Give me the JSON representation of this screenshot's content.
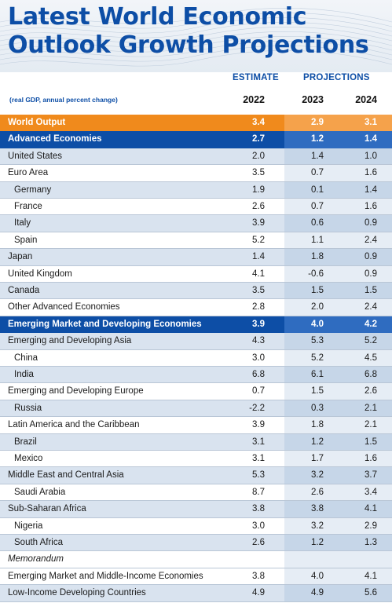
{
  "title_line1": "Latest World Economic",
  "title_line2": "Outlook Growth Projections",
  "header": {
    "estimate": "ESTIMATE",
    "projections": "PROJECTIONS",
    "note": "(real GDP, annual percent change)",
    "years": [
      "2022",
      "2023",
      "2024"
    ]
  },
  "colors": {
    "title": "#0d4ea6",
    "world_output": "#f08a1c",
    "group_header": "#0d4ea6",
    "alt_row": "#d9e3ef"
  },
  "chart_data": {
    "type": "table",
    "columns": [
      "2022",
      "2023",
      "2024"
    ],
    "rows": [
      {
        "label": "World Output",
        "values": [
          "3.4",
          "2.9",
          "3.1"
        ],
        "style": "orange",
        "indent": false
      },
      {
        "label": "Advanced Economies",
        "values": [
          "2.7",
          "1.2",
          "1.4"
        ],
        "style": "blue",
        "indent": false
      },
      {
        "label": "United States",
        "values": [
          "2.0",
          "1.4",
          "1.0"
        ],
        "style": "alt",
        "indent": false
      },
      {
        "label": "Euro Area",
        "values": [
          "3.5",
          "0.7",
          "1.6"
        ],
        "style": "plain",
        "indent": false
      },
      {
        "label": "Germany",
        "values": [
          "1.9",
          "0.1",
          "1.4"
        ],
        "style": "alt",
        "indent": true
      },
      {
        "label": "France",
        "values": [
          "2.6",
          "0.7",
          "1.6"
        ],
        "style": "plain",
        "indent": true
      },
      {
        "label": "Italy",
        "values": [
          "3.9",
          "0.6",
          "0.9"
        ],
        "style": "alt",
        "indent": true
      },
      {
        "label": "Spain",
        "values": [
          "5.2",
          "1.1",
          "2.4"
        ],
        "style": "plain",
        "indent": true
      },
      {
        "label": "Japan",
        "values": [
          "1.4",
          "1.8",
          "0.9"
        ],
        "style": "alt",
        "indent": false
      },
      {
        "label": "United Kingdom",
        "values": [
          "4.1",
          "-0.6",
          "0.9"
        ],
        "style": "plain",
        "indent": false
      },
      {
        "label": "Canada",
        "values": [
          "3.5",
          "1.5",
          "1.5"
        ],
        "style": "alt",
        "indent": false
      },
      {
        "label": "Other Advanced Economies",
        "values": [
          "2.8",
          "2.0",
          "2.4"
        ],
        "style": "plain",
        "indent": false
      },
      {
        "label": "Emerging Market and Developing Economies",
        "values": [
          "3.9",
          "4.0",
          "4.2"
        ],
        "style": "blue",
        "indent": false
      },
      {
        "label": "Emerging and Developing Asia",
        "values": [
          "4.3",
          "5.3",
          "5.2"
        ],
        "style": "alt",
        "indent": false
      },
      {
        "label": "China",
        "values": [
          "3.0",
          "5.2",
          "4.5"
        ],
        "style": "plain",
        "indent": true
      },
      {
        "label": "India",
        "values": [
          "6.8",
          "6.1",
          "6.8"
        ],
        "style": "alt",
        "indent": true
      },
      {
        "label": "Emerging and Developing Europe",
        "values": [
          "0.7",
          "1.5",
          "2.6"
        ],
        "style": "plain",
        "indent": false
      },
      {
        "label": "Russia",
        "values": [
          "-2.2",
          "0.3",
          "2.1"
        ],
        "style": "alt",
        "indent": true
      },
      {
        "label": "Latin America and the Caribbean",
        "values": [
          "3.9",
          "1.8",
          "2.1"
        ],
        "style": "plain",
        "indent": false
      },
      {
        "label": "Brazil",
        "values": [
          "3.1",
          "1.2",
          "1.5"
        ],
        "style": "alt",
        "indent": true
      },
      {
        "label": "Mexico",
        "values": [
          "3.1",
          "1.7",
          "1.6"
        ],
        "style": "plain",
        "indent": true
      },
      {
        "label": "Middle East and Central Asia",
        "values": [
          "5.3",
          "3.2",
          "3.7"
        ],
        "style": "alt",
        "indent": false
      },
      {
        "label": "Saudi Arabia",
        "values": [
          "8.7",
          "2.6",
          "3.4"
        ],
        "style": "plain",
        "indent": true
      },
      {
        "label": "Sub-Saharan Africa",
        "values": [
          "3.8",
          "3.8",
          "4.1"
        ],
        "style": "alt",
        "indent": false
      },
      {
        "label": "Nigeria",
        "values": [
          "3.0",
          "3.2",
          "2.9"
        ],
        "style": "plain",
        "indent": true
      },
      {
        "label": "South Africa",
        "values": [
          "2.6",
          "1.2",
          "1.3"
        ],
        "style": "alt",
        "indent": true
      },
      {
        "label": "Memorandum",
        "values": [
          "",
          "",
          ""
        ],
        "style": "plain",
        "indent": false,
        "memo": true
      },
      {
        "label": "Emerging Market and Middle-Income Economies",
        "values": [
          "3.8",
          "4.0",
          "4.1"
        ],
        "style": "plain",
        "indent": false
      },
      {
        "label": "Low-Income Developing Countries",
        "values": [
          "4.9",
          "4.9",
          "5.6"
        ],
        "style": "alt",
        "indent": false
      }
    ]
  }
}
